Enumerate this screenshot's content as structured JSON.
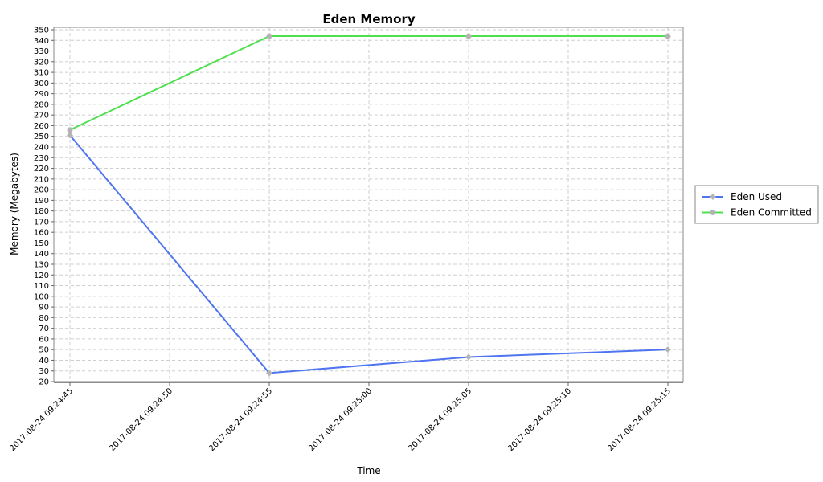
{
  "chart_data": {
    "type": "line",
    "title": "Eden Memory",
    "xlabel": "Time",
    "ylabel": "Memory (Megabytes)",
    "ylim": [
      20,
      350
    ],
    "y_ticks": [
      20,
      30,
      40,
      50,
      60,
      70,
      80,
      90,
      100,
      110,
      120,
      130,
      140,
      150,
      160,
      170,
      180,
      190,
      200,
      210,
      220,
      230,
      240,
      250,
      260,
      270,
      280,
      290,
      300,
      310,
      320,
      330,
      340,
      350
    ],
    "x_ticks": [
      "2017-08-24 09:24:45",
      "2017-08-24 09:24:50",
      "2017-08-24 09:24:55",
      "2017-08-24 09:25:00",
      "2017-08-24 09:25:05",
      "2017-08-24 09:25:10",
      "2017-08-24 09:25:15"
    ],
    "x": [
      "2017-08-24 09:24:45",
      "2017-08-24 09:24:55",
      "2017-08-24 09:25:05",
      "2017-08-24 09:25:15"
    ],
    "grid": true,
    "legend_position": "right",
    "series": [
      {
        "name": "Eden Used",
        "color": "#4f74f0",
        "marker": "diamond",
        "values": [
          251,
          28,
          43,
          50
        ]
      },
      {
        "name": "Eden Committed",
        "color": "#4fe04f",
        "marker": "circle",
        "values": [
          256,
          344,
          344,
          344
        ]
      }
    ]
  }
}
